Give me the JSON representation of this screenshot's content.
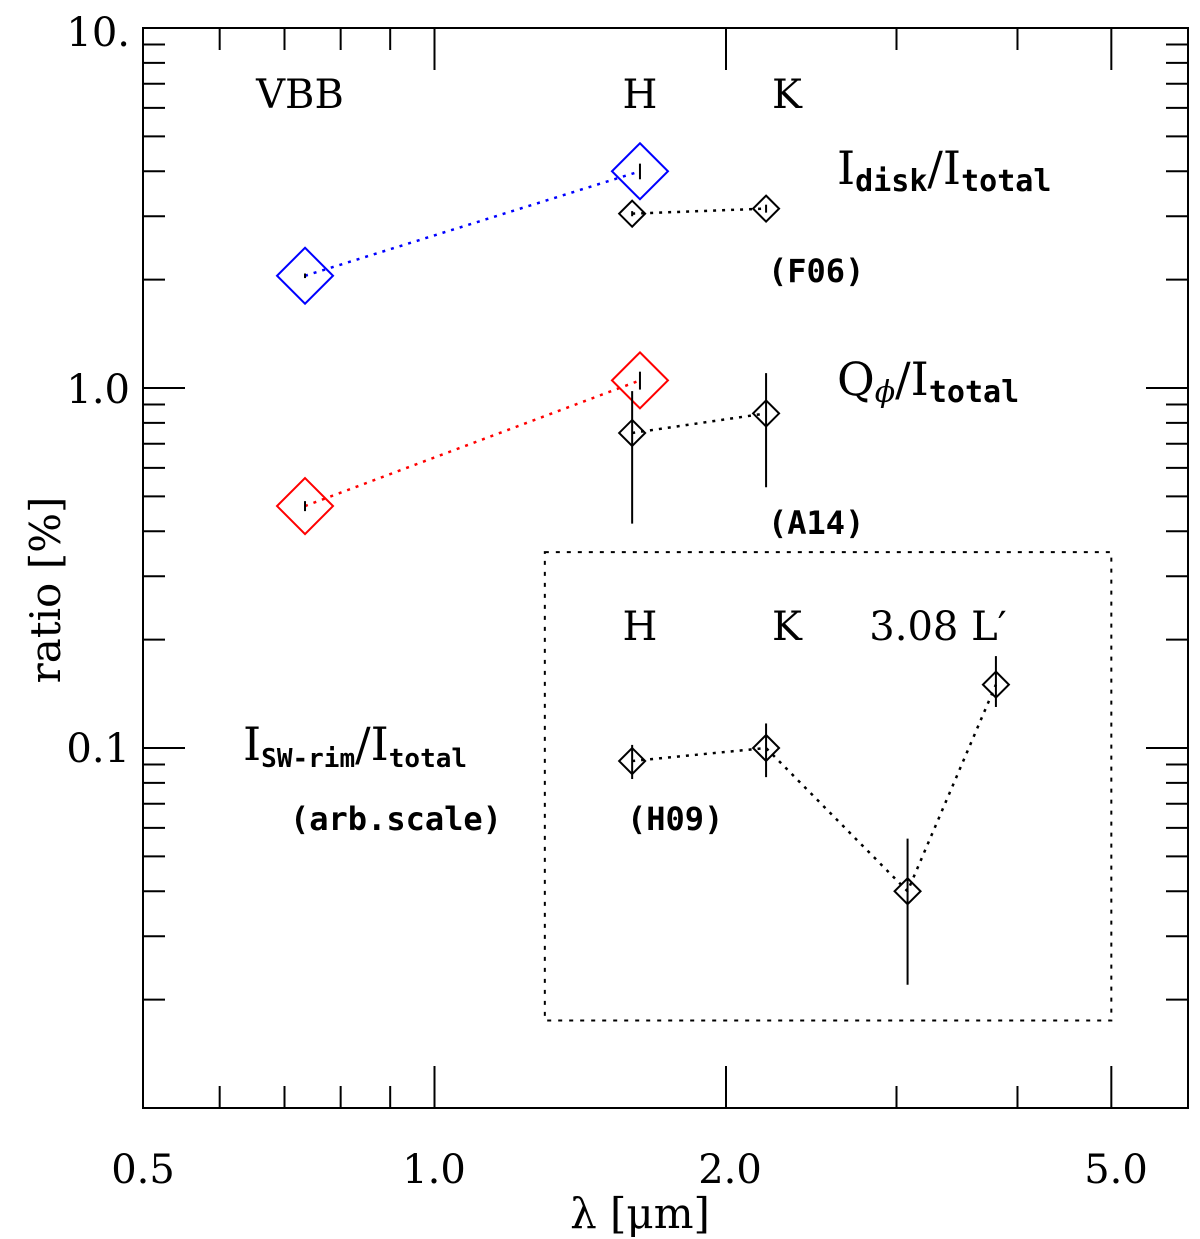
{
  "chart_data": {
    "type": "scatter",
    "xscale": "log",
    "yscale": "log",
    "xlim": [
      0.5,
      6.0
    ],
    "ylim": [
      0.01,
      10.0
    ],
    "xlabel": "λ [μm]",
    "ylabel": "ratio [%]",
    "xticks": [
      {
        "value": 0.5,
        "label": "0.5"
      },
      {
        "value": 1.0,
        "label": "1.0"
      },
      {
        "value": 2.0,
        "label": "2.0"
      },
      {
        "value": 5.0,
        "label": "5.0"
      }
    ],
    "yticks": [
      {
        "value": 0.1,
        "label": "0.1"
      },
      {
        "value": 1.0,
        "label": "1.0"
      },
      {
        "value": 10.0,
        "label": "10."
      }
    ],
    "series": [
      {
        "name": "I_disk/I_total VBB–H",
        "color": "#0000ff",
        "marker": "large-diamond",
        "points": [
          {
            "x": 0.735,
            "y": 2.05,
            "yerr": [
              0.03,
              0.03
            ]
          },
          {
            "x": 1.63,
            "y": 4.0,
            "yerr": [
              0.2,
              0.2
            ]
          }
        ]
      },
      {
        "name": "I_disk/I_total (F06)",
        "color": "#000000",
        "marker": "small-diamond",
        "points": [
          {
            "x": 1.6,
            "y": 3.05,
            "yerr": [
              0.05,
              0.05
            ]
          },
          {
            "x": 2.2,
            "y": 3.15,
            "yerr": [
              0.08,
              0.08
            ]
          }
        ]
      },
      {
        "name": "Q_phi/I_total VBB–H",
        "color": "#ff0000",
        "marker": "large-diamond",
        "points": [
          {
            "x": 0.735,
            "y": 0.47,
            "yerr": [
              0.015,
              0.015
            ]
          },
          {
            "x": 1.63,
            "y": 1.05,
            "yerr": [
              0.06,
              0.06
            ]
          }
        ]
      },
      {
        "name": "Q_phi/I_total (A14)",
        "color": "#000000",
        "marker": "small-diamond",
        "points": [
          {
            "x": 1.6,
            "y": 0.75,
            "yerr": [
              0.33,
              0.23
            ]
          },
          {
            "x": 2.2,
            "y": 0.85,
            "yerr": [
              0.32,
              0.25
            ]
          }
        ]
      },
      {
        "name": "I_SW-rim/I_total (H09)",
        "color": "#000000",
        "marker": "small-diamond",
        "points": [
          {
            "x": 1.6,
            "y": 0.092,
            "yerr": [
              0.01,
              0.01
            ]
          },
          {
            "x": 2.2,
            "y": 0.1,
            "yerr": [
              0.017,
              0.017
            ]
          },
          {
            "x": 3.08,
            "y": 0.04,
            "yerr": [
              0.018,
              0.016
            ]
          },
          {
            "x": 3.8,
            "y": 0.15,
            "yerr": [
              0.02,
              0.03
            ]
          }
        ]
      }
    ],
    "inset_box": {
      "x": [
        1.3,
        5.0
      ],
      "y": [
        0.0175,
        0.35
      ]
    },
    "annotations": {
      "band_vbb": "VBB",
      "band_h": "H",
      "band_k": "K",
      "inset_h": "H",
      "inset_k": "K",
      "inset_lp_value": "3.08",
      "inset_lp_band": "L′",
      "idisk_main": "I",
      "idisk_sub": "disk",
      "idisk_slash": "/I",
      "idisk_sub2": "total",
      "qphi_main": "Q",
      "qphi_sub": "ϕ",
      "qphi_slash": "/I",
      "qphi_sub2": "total",
      "isw_main": "I",
      "isw_sub": "SW-rim",
      "isw_slash": "/I",
      "isw_sub2": "total",
      "ref_f06": "(F06)",
      "ref_a14": "(A14)",
      "ref_h09": "(H09)",
      "arb_scale": "(arb.scale)"
    }
  }
}
